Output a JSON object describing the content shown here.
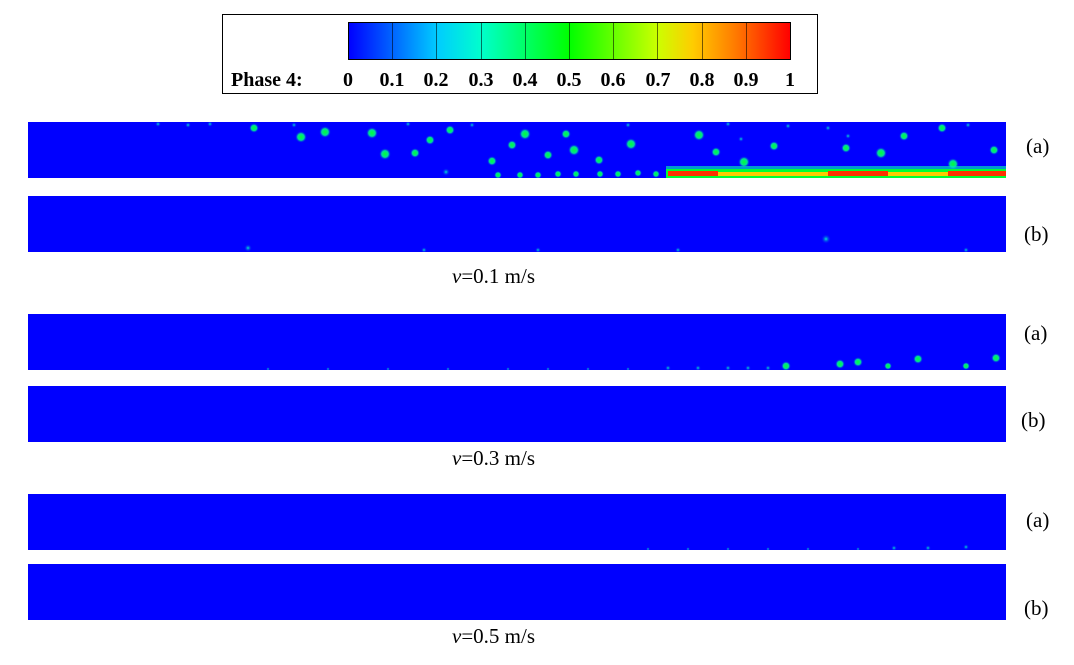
{
  "legend": {
    "title": "Phase 4:",
    "ticks": [
      "0",
      "0.1",
      "0.2",
      "0.3",
      "0.4",
      "0.5",
      "0.6",
      "0.7",
      "0.8",
      "0.9",
      "1"
    ],
    "colormap": [
      "#0000ff",
      "#0066ff",
      "#00ccff",
      "#00ffcc",
      "#00ff66",
      "#00ff00",
      "#66ff00",
      "#ccff00",
      "#ffcc00",
      "#ff7700",
      "#ff0000"
    ],
    "range": [
      0,
      1
    ]
  },
  "groups": [
    {
      "velocity_symbol": "v",
      "velocity_value": "=0.1 m/s",
      "panel_a_label": "(a)",
      "panel_b_label": "(b)"
    },
    {
      "velocity_symbol": "v",
      "velocity_value": "=0.3 m/s",
      "panel_a_label": "(a)",
      "panel_b_label": "(b)"
    },
    {
      "velocity_symbol": "v",
      "velocity_value": "=0.5 m/s",
      "panel_a_label": "(a)",
      "panel_b_label": "(b)"
    }
  ]
}
